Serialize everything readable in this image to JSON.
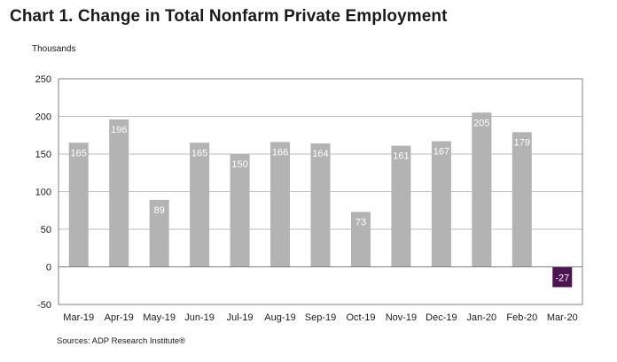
{
  "header": {
    "title": "Chart 1. Change in Total Nonfarm Private Employment",
    "unit_label": "Thousands"
  },
  "footer": {
    "source": "Sources: ADP Research Institute®"
  },
  "chart_data": {
    "type": "bar",
    "title": "Chart 1. Change in Total Nonfarm Private Employment",
    "ylabel": "Thousands",
    "xlabel": "",
    "categories": [
      "Mar-19",
      "Apr-19",
      "May-19",
      "Jun-19",
      "Jul-19",
      "Aug-19",
      "Sep-19",
      "Oct-19",
      "Nov-19",
      "Dec-19",
      "Jan-20",
      "Feb-20",
      "Mar-20"
    ],
    "values": [
      165,
      196,
      89,
      165,
      150,
      166,
      164,
      73,
      161,
      167,
      205,
      179,
      -27
    ],
    "data_labels": [
      "165",
      "196",
      "89",
      "165",
      "150",
      "166",
      "164",
      "73",
      "161",
      "167",
      "205",
      "179",
      "-27"
    ],
    "ylim": [
      -50,
      250
    ],
    "yticks": [
      -50,
      0,
      50,
      100,
      150,
      200,
      250
    ],
    "grid": true,
    "colors": {
      "bar": "#b3b3b3",
      "highlight_bar": "#4d1454",
      "grid": "#bdbdbd",
      "axis": "#7f7f7f"
    },
    "highlight_index": 12
  }
}
